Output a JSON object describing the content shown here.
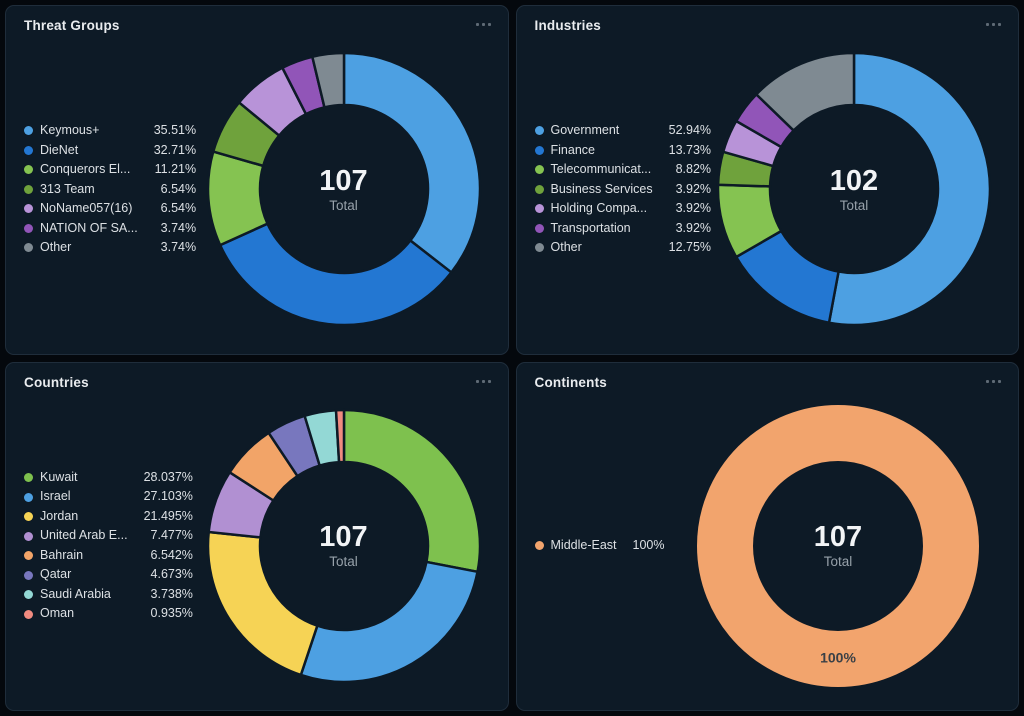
{
  "ui": {
    "background": "#04080D",
    "panel_background": "#0D1A26",
    "panel_border": "#1F2D3B",
    "title_color": "#E9ECEF",
    "legend_text_color": "#DCE0E4",
    "total_value_color": "#F2F4F6",
    "total_label_color": "#97A1AA",
    "menu_icon": "ellipsis-icon"
  },
  "chart_data": [
    {
      "type": "pie",
      "subtype": "donut",
      "title": "Threat Groups",
      "total": "107",
      "center_label": "Total",
      "legend_position": "left",
      "start_angle_deg": 0,
      "direction": "clockwise",
      "slices": [
        {
          "label": "Keymous+",
          "pct": 35.51,
          "pct_text": "35.51%",
          "color": "#4DA0E2"
        },
        {
          "label": "DieNet",
          "pct": 32.71,
          "pct_text": "32.71%",
          "color": "#2377D2"
        },
        {
          "label": "Conquerors El...",
          "pct": 11.21,
          "pct_text": "11.21%",
          "color": "#85C351"
        },
        {
          "label": "313 Team",
          "pct": 6.54,
          "pct_text": "6.54%",
          "color": "#6FA23C"
        },
        {
          "label": "NoName057(16)",
          "pct": 6.54,
          "pct_text": "6.54%",
          "color": "#B893D8"
        },
        {
          "label": "NATION OF SA...",
          "pct": 3.74,
          "pct_text": "3.74%",
          "color": "#9155B8"
        },
        {
          "label": "Other",
          "pct": 3.74,
          "pct_text": "3.74%",
          "color": "#7F8A92"
        }
      ]
    },
    {
      "type": "pie",
      "subtype": "donut",
      "title": "Industries",
      "total": "102",
      "center_label": "Total",
      "legend_position": "left",
      "start_angle_deg": 0,
      "direction": "clockwise",
      "slices": [
        {
          "label": "Government",
          "pct": 52.94,
          "pct_text": "52.94%",
          "color": "#4DA0E2"
        },
        {
          "label": "Finance",
          "pct": 13.73,
          "pct_text": "13.73%",
          "color": "#2377D2"
        },
        {
          "label": "Telecommunicat...",
          "pct": 8.82,
          "pct_text": "8.82%",
          "color": "#85C351"
        },
        {
          "label": "Business Services",
          "pct": 3.92,
          "pct_text": "3.92%",
          "color": "#6FA23C"
        },
        {
          "label": "Holding Compa...",
          "pct": 3.92,
          "pct_text": "3.92%",
          "color": "#B893D8"
        },
        {
          "label": "Transportation",
          "pct": 3.92,
          "pct_text": "3.92%",
          "color": "#9155B8"
        },
        {
          "label": "Other",
          "pct": 12.75,
          "pct_text": "12.75%",
          "color": "#7F8A92"
        }
      ]
    },
    {
      "type": "pie",
      "subtype": "donut",
      "title": "Countries",
      "total": "107",
      "center_label": "Total",
      "legend_position": "left",
      "start_angle_deg": 0,
      "direction": "clockwise",
      "slices": [
        {
          "label": "Kuwait",
          "pct": 28.037,
          "pct_text": "28.037%",
          "color": "#7EC14E"
        },
        {
          "label": "Israel",
          "pct": 27.103,
          "pct_text": "27.103%",
          "color": "#4DA0E2"
        },
        {
          "label": "Jordan",
          "pct": 21.495,
          "pct_text": "21.495%",
          "color": "#F6D355"
        },
        {
          "label": "United Arab E...",
          "pct": 7.477,
          "pct_text": "7.477%",
          "color": "#B190D2"
        },
        {
          "label": "Bahrain",
          "pct": 6.542,
          "pct_text": "6.542%",
          "color": "#F2A468"
        },
        {
          "label": "Qatar",
          "pct": 4.673,
          "pct_text": "4.673%",
          "color": "#7877BE"
        },
        {
          "label": "Saudi Arabia",
          "pct": 3.738,
          "pct_text": "3.738%",
          "color": "#93D8D5"
        },
        {
          "label": "Oman",
          "pct": 0.935,
          "pct_text": "0.935%",
          "color": "#F08B80"
        }
      ]
    },
    {
      "type": "pie",
      "subtype": "donut",
      "title": "Continents",
      "total": "107",
      "center_label": "Total",
      "legend_position": "left",
      "start_angle_deg": 0,
      "direction": "clockwise",
      "slices": [
        {
          "label": "Middle-East",
          "pct": 100,
          "pct_text": "100%",
          "color": "#F2A46D",
          "data_label": "100%"
        }
      ]
    }
  ]
}
